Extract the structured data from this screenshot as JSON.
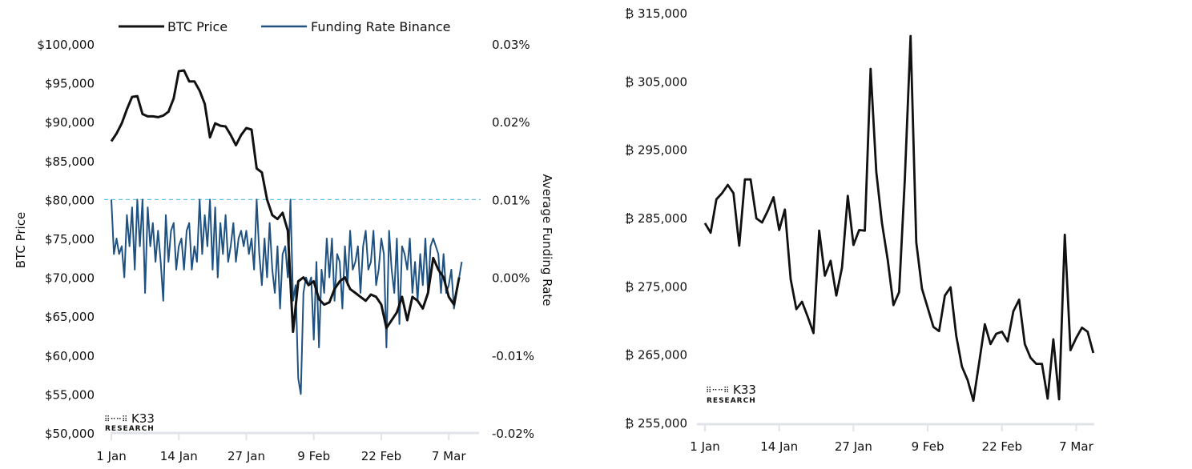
{
  "chart_data": [
    {
      "type": "line",
      "legend": {
        "placement": "top",
        "entries": [
          "BTC Price",
          "Funding Rate Binance"
        ]
      },
      "ylabel": "BTC Price",
      "y2label": "Average Funding Rate",
      "xticks": [
        "1 Jan",
        "14 Jan",
        "27 Jan",
        "9 Feb",
        "22 Feb",
        "7 Mar"
      ],
      "xtick_dates": [
        "01-01",
        "01-14",
        "01-27",
        "02-09",
        "02-22",
        "03-07"
      ],
      "yticks": [
        "$100,000",
        "$95,000",
        "$90,000",
        "$85,000",
        "$80,000",
        "$75,000",
        "$70,000",
        "$65,000",
        "$60,000",
        "$55,000",
        "$50,000"
      ],
      "ylim": [
        50000,
        100000
      ],
      "y2ticks": [
        "0.03%",
        "0.02%",
        "0.01%",
        "0.00%",
        "-0.01%",
        "-0.02%"
      ],
      "y2lim": [
        -0.02,
        0.03
      ],
      "reference_line": {
        "axis": "y2",
        "value": 0.01,
        "style": "dashed",
        "color": "#5bc4e8"
      },
      "grid": false,
      "logo": [
        "K33",
        "RESEARCH"
      ],
      "series": [
        {
          "name": "BTC Price",
          "axis": "y",
          "color": "#111111",
          "x": [
            "01-01",
            "01-02",
            "01-03",
            "01-04",
            "01-05",
            "01-06",
            "01-07",
            "01-08",
            "01-09",
            "01-10",
            "01-11",
            "01-12",
            "01-13",
            "01-14",
            "01-15",
            "01-16",
            "01-17",
            "01-18",
            "01-19",
            "01-20",
            "01-21",
            "01-22",
            "01-23",
            "01-24",
            "01-25",
            "01-26",
            "01-27",
            "01-28",
            "01-29",
            "01-30",
            "01-31",
            "02-01",
            "02-02",
            "02-03",
            "02-04",
            "02-05",
            "02-06",
            "02-07",
            "02-08",
            "02-09",
            "02-10",
            "02-11",
            "02-12",
            "02-13",
            "02-14",
            "02-15",
            "02-16",
            "02-17",
            "02-18",
            "02-19",
            "02-20",
            "02-21",
            "02-22",
            "02-23",
            "02-24",
            "02-25",
            "02-26",
            "02-27",
            "02-28",
            "03-01",
            "03-02",
            "03-03",
            "03-04",
            "03-05",
            "03-06",
            "03-07",
            "03-08",
            "03-09"
          ],
          "values": [
            87500,
            88500,
            89800,
            91600,
            93200,
            93300,
            91000,
            90700,
            90700,
            90600,
            90800,
            91300,
            93000,
            96500,
            96600,
            95200,
            95200,
            94000,
            92300,
            88000,
            89800,
            89500,
            89400,
            88300,
            87000,
            88300,
            89200,
            89000,
            84000,
            83500,
            80000,
            78000,
            77500,
            78300,
            76000,
            63000,
            69500,
            70000,
            69000,
            69500,
            67200,
            66500,
            66800,
            68500,
            69500,
            70000,
            68500,
            68000,
            67500,
            67000,
            67800,
            67500,
            66500,
            63500,
            64500,
            65500,
            67500,
            64500,
            67500,
            67000,
            66000,
            68000,
            72500,
            71000,
            70000,
            67500,
            66500,
            70000
          ]
        },
        {
          "name": "Funding Rate Binance",
          "axis": "y2",
          "color": "#1f5281",
          "hours": [
            "00:00",
            "12:00"
          ],
          "x": [
            "01-01",
            "01-02",
            "01-03",
            "01-04",
            "01-05",
            "01-06",
            "01-07",
            "01-08",
            "01-09",
            "01-10",
            "01-11",
            "01-12",
            "01-13",
            "01-14",
            "01-15",
            "01-16",
            "01-17",
            "01-18",
            "01-19",
            "01-20",
            "01-21",
            "01-22",
            "01-23",
            "01-24",
            "01-25",
            "01-26",
            "01-27",
            "01-28",
            "01-29",
            "01-30",
            "01-31",
            "02-01",
            "02-02",
            "02-03",
            "02-04",
            "02-05",
            "02-06",
            "02-07",
            "02-08",
            "02-09",
            "02-10",
            "02-11",
            "02-12",
            "02-13",
            "02-14",
            "02-15",
            "02-16",
            "02-17",
            "02-18",
            "02-19",
            "02-20",
            "02-21",
            "02-22",
            "02-23",
            "02-24",
            "02-25",
            "02-26",
            "02-27",
            "02-28",
            "03-01",
            "03-02",
            "03-03",
            "03-04",
            "03-05",
            "03-06",
            "03-07",
            "03-08",
            "03-09"
          ],
          "values": [
            [
              0.01,
              0.003
            ],
            [
              0.005,
              0.003
            ],
            [
              0.004,
              0.0
            ],
            [
              0.008,
              0.004
            ],
            [
              0.009,
              0.001
            ],
            [
              0.01,
              0.004
            ],
            [
              0.01,
              -0.002
            ],
            [
              0.009,
              0.004
            ],
            [
              0.007,
              0.002
            ],
            [
              0.006,
              0.002
            ],
            [
              -0.003,
              0.008
            ],
            [
              0.002,
              0.006
            ],
            [
              0.007,
              0.001
            ],
            [
              0.004,
              0.005
            ],
            [
              0.001,
              0.006
            ],
            [
              0.007,
              0.001
            ],
            [
              0.004,
              0.002
            ],
            [
              0.01,
              0.003
            ],
            [
              0.008,
              0.004
            ],
            [
              0.01,
              0.001
            ],
            [
              0.009,
              0.0
            ],
            [
              0.007,
              0.003
            ],
            [
              0.008,
              0.002
            ],
            [
              0.004,
              0.007
            ],
            [
              0.002,
              0.005
            ],
            [
              0.006,
              0.004
            ],
            [
              0.006,
              0.003
            ],
            [
              0.005,
              0.001
            ],
            [
              0.01,
              0.003
            ],
            [
              -0.001,
              0.005
            ],
            [
              0.0,
              0.007
            ],
            [
              0.001,
              -0.002
            ],
            [
              0.004,
              -0.004
            ],
            [
              0.003,
              0.004
            ],
            [
              0.0,
              0.01
            ],
            [
              -0.003,
              -0.001
            ],
            [
              -0.013,
              -0.015
            ],
            [
              -0.002,
              0.0
            ],
            [
              -0.001,
              0.0
            ],
            [
              -0.008,
              0.002
            ],
            [
              -0.009,
              0.001
            ],
            [
              -0.002,
              0.005
            ],
            [
              0.0,
              0.005
            ],
            [
              -0.003,
              0.003
            ],
            [
              0.002,
              -0.004
            ],
            [
              0.004,
              -0.001
            ],
            [
              0.006,
              0.001
            ],
            [
              0.002,
              0.004
            ],
            [
              -0.002,
              0.004
            ],
            [
              0.006,
              0.001
            ],
            [
              0.002,
              0.006
            ],
            [
              -0.001,
              0.001
            ],
            [
              0.005,
              0.003
            ],
            [
              -0.009,
              0.006
            ],
            [
              0.001,
              -0.002
            ],
            [
              0.005,
              -0.006
            ],
            [
              0.004,
              0.003
            ],
            [
              0.001,
              0.005
            ],
            [
              -0.002,
              0.002
            ],
            [
              -0.003,
              0.003
            ],
            [
              -0.001,
              0.005
            ],
            [
              -0.002,
              0.004
            ],
            [
              0.005,
              0.004
            ],
            [
              0.003,
              -0.002
            ],
            [
              0.003,
              -0.002
            ],
            [
              -0.001,
              0.001
            ],
            [
              -0.004,
              -0.002
            ],
            [
              0.0,
              0.002
            ]
          ]
        }
      ]
    },
    {
      "type": "line",
      "xticks": [
        "1 Jan",
        "14 Jan",
        "27 Jan",
        "9 Feb",
        "22 Feb",
        "7 Mar"
      ],
      "xtick_dates": [
        "01-01",
        "01-14",
        "01-27",
        "02-09",
        "02-22",
        "03-07"
      ],
      "yticks": [
        "₿ 315,000",
        "₿ 305,000",
        "₿ 295,000",
        "₿ 285,000",
        "₿ 275,000",
        "₿ 265,000",
        "₿ 255,000"
      ],
      "ylim": [
        255000,
        315000
      ],
      "grid": false,
      "logo": [
        "K33",
        "RESEARCH"
      ],
      "series": [
        {
          "color": "#111111",
          "x": [
            "01-01",
            "01-02",
            "01-03",
            "01-04",
            "01-05",
            "01-06",
            "01-07",
            "01-08",
            "01-09",
            "01-10",
            "01-11",
            "01-12",
            "01-13",
            "01-14",
            "01-15",
            "01-16",
            "01-17",
            "01-18",
            "01-19",
            "01-20",
            "01-21",
            "01-22",
            "01-23",
            "01-24",
            "01-25",
            "01-26",
            "01-27",
            "01-28",
            "01-29",
            "01-30",
            "01-31",
            "02-01",
            "02-02",
            "02-03",
            "02-04",
            "02-05",
            "02-06",
            "02-07",
            "02-08",
            "02-09",
            "02-10",
            "02-11",
            "02-12",
            "02-13",
            "02-14",
            "02-15",
            "02-16",
            "02-17",
            "02-18",
            "02-19",
            "02-20",
            "02-21",
            "02-22",
            "02-23",
            "02-24",
            "02-25",
            "02-26",
            "02-27",
            "02-28",
            "03-01",
            "03-02",
            "03-03",
            "03-04",
            "03-05",
            "03-06",
            "03-07",
            "03-08",
            "03-09",
            "03-10"
          ],
          "values": [
            284200,
            282800,
            287700,
            288600,
            289800,
            288600,
            280900,
            290600,
            290600,
            284900,
            284300,
            286000,
            288000,
            283200,
            286200,
            276000,
            271600,
            272700,
            270500,
            268100,
            283100,
            276500,
            278700,
            273600,
            277700,
            288200,
            281000,
            283200,
            283100,
            306800,
            291700,
            284200,
            278800,
            272200,
            274100,
            290600,
            311600,
            281400,
            274600,
            271800,
            269000,
            268400,
            273600,
            274800,
            267700,
            263200,
            261200,
            258200,
            263700,
            269400,
            266500,
            268000,
            268300,
            266900,
            271300,
            273000,
            266500,
            264500,
            263600,
            263600,
            258500,
            267200,
            258400,
            282500,
            265600,
            267400,
            268900,
            268300,
            265200
          ]
        }
      ]
    }
  ]
}
